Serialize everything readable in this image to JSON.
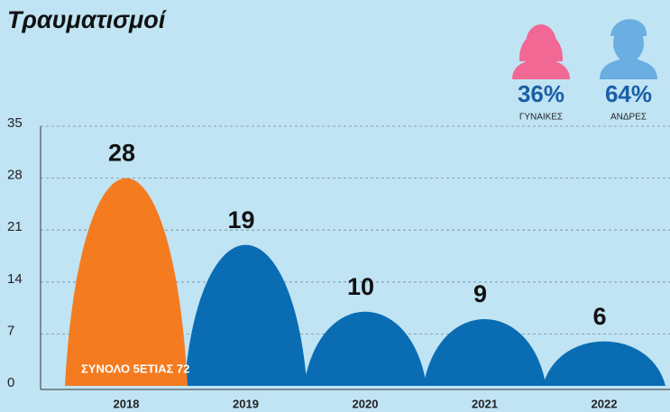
{
  "chart_data": {
    "type": "hump",
    "title": "Τραυματισμοί",
    "categories": [
      "2018",
      "2019",
      "2020",
      "2021",
      "2022"
    ],
    "values": [
      28,
      19,
      10,
      9,
      6
    ],
    "colors": [
      "#f47b20",
      "#0a6db3",
      "#0a6db3",
      "#0a6db3",
      "#0a6db3"
    ],
    "ylim": [
      0,
      35
    ],
    "yticks": [
      0,
      7,
      14,
      21,
      28,
      35
    ],
    "grid": true,
    "annotation": "ΣΥΝΟΛΟ 5ΕΤΙΑΣ 72"
  },
  "gender": {
    "categories": [
      "ΓΥΝΑΙΚΕΣ",
      "ΑΝΔΡΕΣ"
    ],
    "values": [
      36,
      64
    ],
    "value_labels": [
      "36%",
      "64%"
    ],
    "colors": [
      "#f06893",
      "#6aaee2"
    ]
  }
}
